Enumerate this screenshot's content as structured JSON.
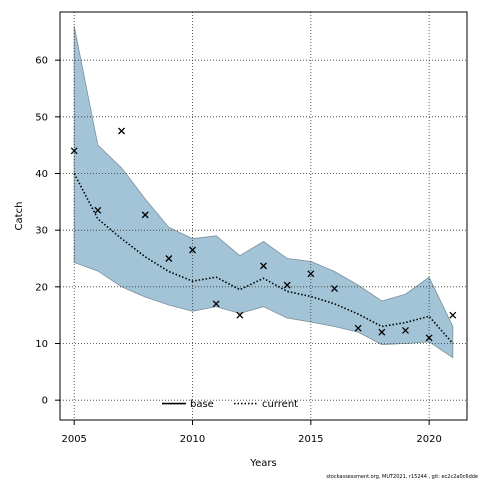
{
  "chart_data": {
    "type": "line",
    "xlabel": "Years",
    "ylabel": "Catch",
    "xlim": [
      2004.4,
      2021.6
    ],
    "ylim": [
      -3.5,
      68.5
    ],
    "xticks": [
      2005,
      2010,
      2015,
      2020
    ],
    "yticks": [
      0,
      10,
      20,
      30,
      40,
      50,
      60
    ],
    "grid": true,
    "legend_placement": "bottom-center",
    "colors": {
      "band_fill": "#a3c4d7",
      "band_stroke": "#7a8f9b",
      "line": "#000000",
      "grid": "#333333"
    },
    "years": [
      2005,
      2006,
      2007,
      2008,
      2009,
      2010,
      2011,
      2012,
      2013,
      2014,
      2015,
      2016,
      2017,
      2018,
      2019,
      2020,
      2021
    ],
    "observed": [
      44,
      33.5,
      47.5,
      32.7,
      25,
      26.5,
      17,
      15,
      23.7,
      20.3,
      22.3,
      19.7,
      12.7,
      12,
      12.3,
      11,
      15
    ],
    "series": [
      {
        "name": "base",
        "style": "solid",
        "values": []
      },
      {
        "name": "current",
        "style": "dotted",
        "values": [
          40,
          32,
          28.5,
          25.3,
          22.7,
          21,
          21.7,
          19.5,
          21.5,
          19.2,
          18.3,
          17,
          15.2,
          13,
          13.7,
          14.8,
          10
        ]
      }
    ],
    "band": {
      "lower": [
        24.3,
        22.8,
        20,
        18.2,
        16.8,
        15.7,
        16.5,
        15.3,
        16.5,
        14.5,
        13.8,
        13,
        12,
        9.8,
        10,
        10.3,
        7.5
      ],
      "upper": [
        66,
        45,
        41,
        35.5,
        30.5,
        28.5,
        29,
        25.5,
        28,
        25,
        24.5,
        22.7,
        20.3,
        17.5,
        18.7,
        21.7,
        13
      ]
    }
  },
  "footer": "stockassessment.org, MUT2021, r15244 , git: ec2c2a0c6dde"
}
